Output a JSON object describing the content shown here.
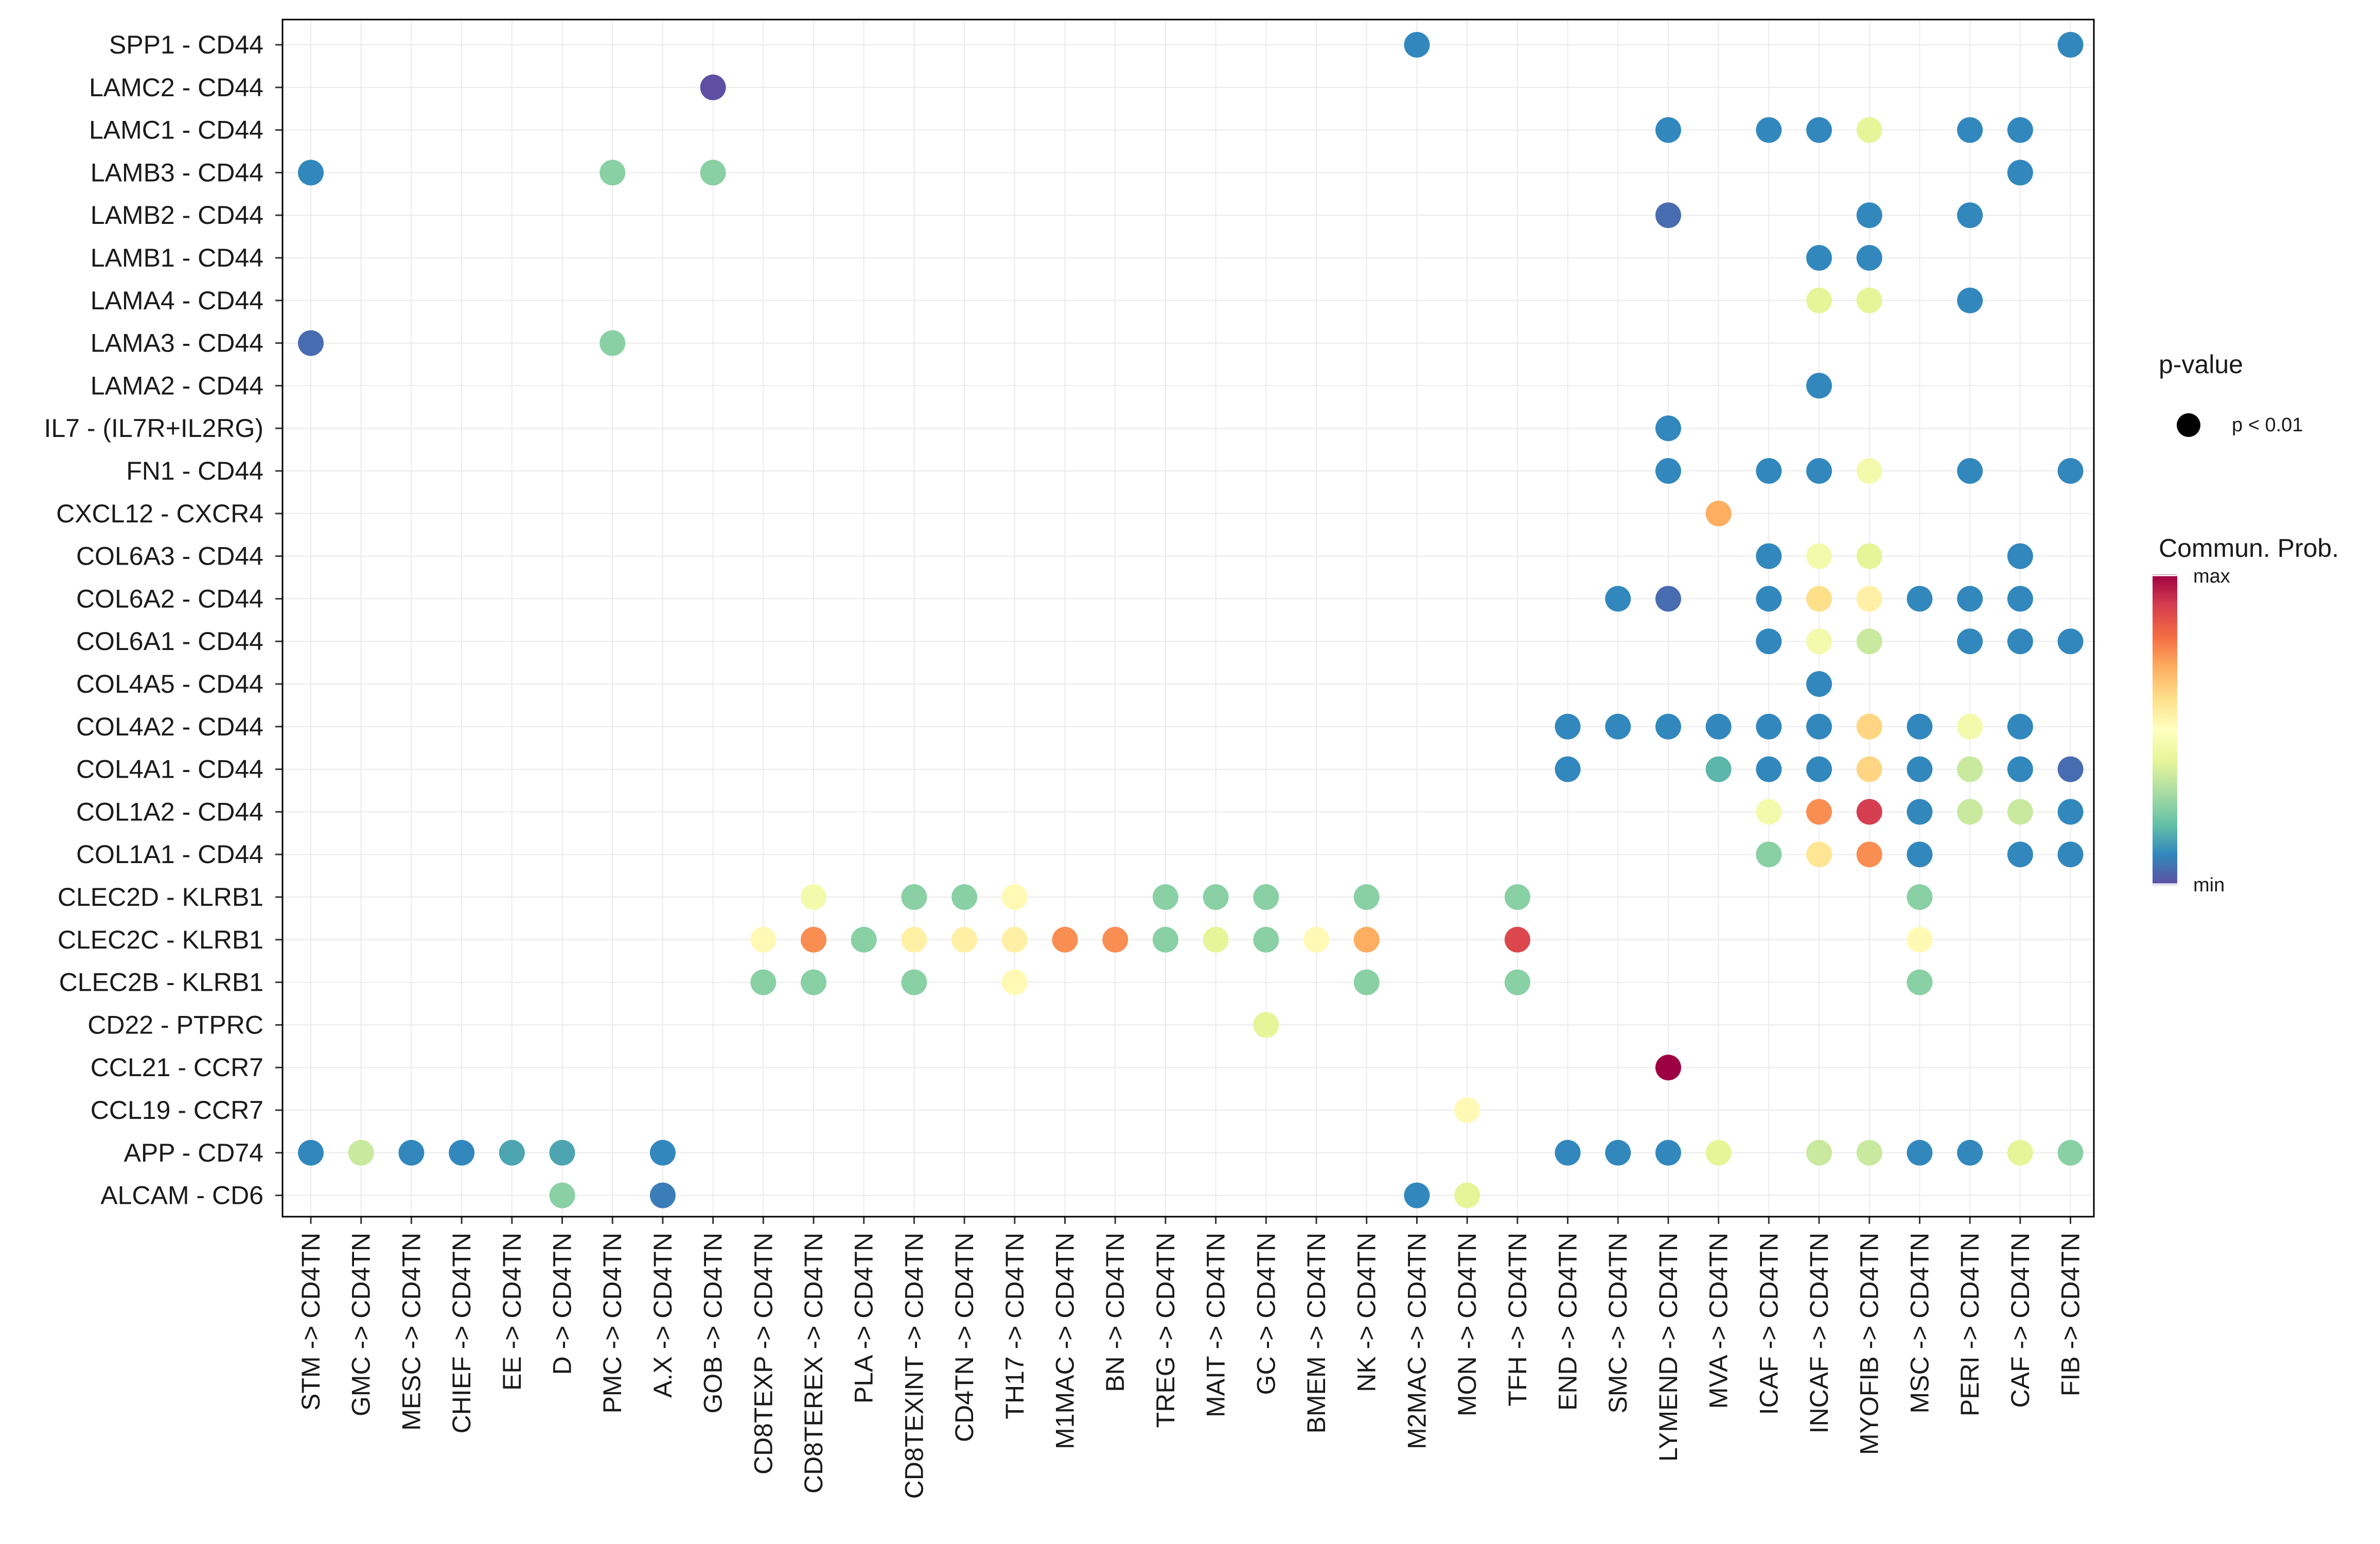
{
  "chart_data": {
    "type": "dot-heatmap",
    "title": "",
    "xlabel": "",
    "ylabel": "",
    "x_categories": [
      "STM -> CD4TN",
      "GMC -> CD4TN",
      "MESC -> CD4TN",
      "CHIEF -> CD4TN",
      "EE -> CD4TN",
      "D -> CD4TN",
      "PMC -> CD4TN",
      "A.X -> CD4TN",
      "GOB -> CD4TN",
      "CD8TEXP -> CD4TN",
      "CD8TEREX -> CD4TN",
      "PLA -> CD4TN",
      "CD8TEXINT -> CD4TN",
      "CD4TN -> CD4TN",
      "TH17 -> CD4TN",
      "M1MAC -> CD4TN",
      "BN -> CD4TN",
      "TREG -> CD4TN",
      "MAIT -> CD4TN",
      "GC -> CD4TN",
      "BMEM -> CD4TN",
      "NK -> CD4TN",
      "M2MAC -> CD4TN",
      "MON -> CD4TN",
      "TFH -> CD4TN",
      "END -> CD4TN",
      "SMC -> CD4TN",
      "LYMEND -> CD4TN",
      "MVA -> CD4TN",
      "ICAF -> CD4TN",
      "INCAF -> CD4TN",
      "MYOFIB -> CD4TN",
      "MSC -> CD4TN",
      "PERI -> CD4TN",
      "CAF -> CD4TN",
      "FIB -> CD4TN"
    ],
    "y_categories": [
      "SPP1 - CD44",
      "LAMC2 - CD44",
      "LAMC1 - CD44",
      "LAMB3 - CD44",
      "LAMB2 - CD44",
      "LAMB1 - CD44",
      "LAMA4 - CD44",
      "LAMA3 - CD44",
      "LAMA2 - CD44",
      "IL7 - (IL7R+IL2RG)",
      "FN1 - CD44",
      "CXCL12 - CXCR4",
      "COL6A3 - CD44",
      "COL6A2 - CD44",
      "COL6A1 - CD44",
      "COL4A5 - CD44",
      "COL4A2 - CD44",
      "COL4A1 - CD44",
      "COL1A2 - CD44",
      "COL1A1 - CD44",
      "CLEC2D - KLRB1",
      "CLEC2C - KLRB1",
      "CLEC2B - KLRB1",
      "CD22 - PTPRC",
      "CCL21 - CCR7",
      "CCL19 - CCR7",
      "APP - CD74",
      "ALCAM - CD6"
    ],
    "value_scale": "relative communication probability, 0 = min, 1 = max",
    "points": [
      {
        "x": "M2MAC -> CD4TN",
        "y": "SPP1 - CD44",
        "value": 0.1
      },
      {
        "x": "FIB -> CD4TN",
        "y": "SPP1 - CD44",
        "value": 0.1
      },
      {
        "x": "GOB -> CD4TN",
        "y": "LAMC2 - CD44",
        "value": 0.0
      },
      {
        "x": "LYMEND -> CD4TN",
        "y": "LAMC1 - CD44",
        "value": 0.1
      },
      {
        "x": "ICAF -> CD4TN",
        "y": "LAMC1 - CD44",
        "value": 0.1
      },
      {
        "x": "INCAF -> CD4TN",
        "y": "LAMC1 - CD44",
        "value": 0.1
      },
      {
        "x": "MYOFIB -> CD4TN",
        "y": "LAMC1 - CD44",
        "value": 0.4
      },
      {
        "x": "PERI -> CD4TN",
        "y": "LAMC1 - CD44",
        "value": 0.1
      },
      {
        "x": "CAF -> CD4TN",
        "y": "LAMC1 - CD44",
        "value": 0.1
      },
      {
        "x": "STM -> CD4TN",
        "y": "LAMB3 - CD44",
        "value": 0.1
      },
      {
        "x": "PMC -> CD4TN",
        "y": "LAMB3 - CD44",
        "value": 0.25
      },
      {
        "x": "GOB -> CD4TN",
        "y": "LAMB3 - CD44",
        "value": 0.25
      },
      {
        "x": "CAF -> CD4TN",
        "y": "LAMB3 - CD44",
        "value": 0.1
      },
      {
        "x": "LYMEND -> CD4TN",
        "y": "LAMB2 - CD44",
        "value": 0.05
      },
      {
        "x": "MYOFIB -> CD4TN",
        "y": "LAMB2 - CD44",
        "value": 0.1
      },
      {
        "x": "PERI -> CD4TN",
        "y": "LAMB2 - CD44",
        "value": 0.1
      },
      {
        "x": "INCAF -> CD4TN",
        "y": "LAMB1 - CD44",
        "value": 0.1
      },
      {
        "x": "MYOFIB -> CD4TN",
        "y": "LAMB1 - CD44",
        "value": 0.1
      },
      {
        "x": "INCAF -> CD4TN",
        "y": "LAMA4 - CD44",
        "value": 0.4
      },
      {
        "x": "MYOFIB -> CD4TN",
        "y": "LAMA4 - CD44",
        "value": 0.4
      },
      {
        "x": "PERI -> CD4TN",
        "y": "LAMA4 - CD44",
        "value": 0.1
      },
      {
        "x": "STM -> CD4TN",
        "y": "LAMA3 - CD44",
        "value": 0.05
      },
      {
        "x": "PMC -> CD4TN",
        "y": "LAMA3 - CD44",
        "value": 0.25
      },
      {
        "x": "INCAF -> CD4TN",
        "y": "LAMA2 - CD44",
        "value": 0.1
      },
      {
        "x": "LYMEND -> CD4TN",
        "y": "IL7 - (IL7R+IL2RG)",
        "value": 0.1
      },
      {
        "x": "LYMEND -> CD4TN",
        "y": "FN1 - CD44",
        "value": 0.1
      },
      {
        "x": "ICAF -> CD4TN",
        "y": "FN1 - CD44",
        "value": 0.1
      },
      {
        "x": "INCAF -> CD4TN",
        "y": "FN1 - CD44",
        "value": 0.1
      },
      {
        "x": "MYOFIB -> CD4TN",
        "y": "FN1 - CD44",
        "value": 0.45
      },
      {
        "x": "PERI -> CD4TN",
        "y": "FN1 - CD44",
        "value": 0.1
      },
      {
        "x": "FIB -> CD4TN",
        "y": "FN1 - CD44",
        "value": 0.1
      },
      {
        "x": "MVA -> CD4TN",
        "y": "CXCL12 - CXCR4",
        "value": 0.7
      },
      {
        "x": "ICAF -> CD4TN",
        "y": "COL6A3 - CD44",
        "value": 0.1
      },
      {
        "x": "INCAF -> CD4TN",
        "y": "COL6A3 - CD44",
        "value": 0.45
      },
      {
        "x": "MYOFIB -> CD4TN",
        "y": "COL6A3 - CD44",
        "value": 0.4
      },
      {
        "x": "CAF -> CD4TN",
        "y": "COL6A3 - CD44",
        "value": 0.1
      },
      {
        "x": "SMC -> CD4TN",
        "y": "COL6A2 - CD44",
        "value": 0.1
      },
      {
        "x": "LYMEND -> CD4TN",
        "y": "COL6A2 - CD44",
        "value": 0.05
      },
      {
        "x": "ICAF -> CD4TN",
        "y": "COL6A2 - CD44",
        "value": 0.1
      },
      {
        "x": "INCAF -> CD4TN",
        "y": "COL6A2 - CD44",
        "value": 0.6
      },
      {
        "x": "MYOFIB -> CD4TN",
        "y": "COL6A2 - CD44",
        "value": 0.55
      },
      {
        "x": "MSC -> CD4TN",
        "y": "COL6A2 - CD44",
        "value": 0.1
      },
      {
        "x": "PERI -> CD4TN",
        "y": "COL6A2 - CD44",
        "value": 0.1
      },
      {
        "x": "CAF -> CD4TN",
        "y": "COL6A2 - CD44",
        "value": 0.1
      },
      {
        "x": "ICAF -> CD4TN",
        "y": "COL6A1 - CD44",
        "value": 0.1
      },
      {
        "x": "INCAF -> CD4TN",
        "y": "COL6A1 - CD44",
        "value": 0.45
      },
      {
        "x": "MYOFIB -> CD4TN",
        "y": "COL6A1 - CD44",
        "value": 0.35
      },
      {
        "x": "PERI -> CD4TN",
        "y": "COL6A1 - CD44",
        "value": 0.1
      },
      {
        "x": "CAF -> CD4TN",
        "y": "COL6A1 - CD44",
        "value": 0.1
      },
      {
        "x": "FIB -> CD4TN",
        "y": "COL6A1 - CD44",
        "value": 0.1
      },
      {
        "x": "INCAF -> CD4TN",
        "y": "COL4A5 - CD44",
        "value": 0.1
      },
      {
        "x": "END -> CD4TN",
        "y": "COL4A2 - CD44",
        "value": 0.1
      },
      {
        "x": "SMC -> CD4TN",
        "y": "COL4A2 - CD44",
        "value": 0.1
      },
      {
        "x": "LYMEND -> CD4TN",
        "y": "COL4A2 - CD44",
        "value": 0.1
      },
      {
        "x": "MVA -> CD4TN",
        "y": "COL4A2 - CD44",
        "value": 0.1
      },
      {
        "x": "ICAF -> CD4TN",
        "y": "COL4A2 - CD44",
        "value": 0.1
      },
      {
        "x": "INCAF -> CD4TN",
        "y": "COL4A2 - CD44",
        "value": 0.1
      },
      {
        "x": "MYOFIB -> CD4TN",
        "y": "COL4A2 - CD44",
        "value": 0.62
      },
      {
        "x": "MSC -> CD4TN",
        "y": "COL4A2 - CD44",
        "value": 0.1
      },
      {
        "x": "PERI -> CD4TN",
        "y": "COL4A2 - CD44",
        "value": 0.45
      },
      {
        "x": "CAF -> CD4TN",
        "y": "COL4A2 - CD44",
        "value": 0.1
      },
      {
        "x": "END -> CD4TN",
        "y": "COL4A1 - CD44",
        "value": 0.1
      },
      {
        "x": "MVA -> CD4TN",
        "y": "COL4A1 - CD44",
        "value": 0.18
      },
      {
        "x": "ICAF -> CD4TN",
        "y": "COL4A1 - CD44",
        "value": 0.1
      },
      {
        "x": "INCAF -> CD4TN",
        "y": "COL4A1 - CD44",
        "value": 0.1
      },
      {
        "x": "MYOFIB -> CD4TN",
        "y": "COL4A1 - CD44",
        "value": 0.62
      },
      {
        "x": "MSC -> CD4TN",
        "y": "COL4A1 - CD44",
        "value": 0.1
      },
      {
        "x": "PERI -> CD4TN",
        "y": "COL4A1 - CD44",
        "value": 0.35
      },
      {
        "x": "CAF -> CD4TN",
        "y": "COL4A1 - CD44",
        "value": 0.1
      },
      {
        "x": "FIB -> CD4TN",
        "y": "COL4A1 - CD44",
        "value": 0.05
      },
      {
        "x": "ICAF -> CD4TN",
        "y": "COL1A2 - CD44",
        "value": 0.45
      },
      {
        "x": "INCAF -> CD4TN",
        "y": "COL1A2 - CD44",
        "value": 0.75
      },
      {
        "x": "MYOFIB -> CD4TN",
        "y": "COL1A2 - CD44",
        "value": 0.9
      },
      {
        "x": "MSC -> CD4TN",
        "y": "COL1A2 - CD44",
        "value": 0.1
      },
      {
        "x": "PERI -> CD4TN",
        "y": "COL1A2 - CD44",
        "value": 0.35
      },
      {
        "x": "CAF -> CD4TN",
        "y": "COL1A2 - CD44",
        "value": 0.35
      },
      {
        "x": "FIB -> CD4TN",
        "y": "COL1A2 - CD44",
        "value": 0.1
      },
      {
        "x": "ICAF -> CD4TN",
        "y": "COL1A1 - CD44",
        "value": 0.25
      },
      {
        "x": "INCAF -> CD4TN",
        "y": "COL1A1 - CD44",
        "value": 0.58
      },
      {
        "x": "MYOFIB -> CD4TN",
        "y": "COL1A1 - CD44",
        "value": 0.75
      },
      {
        "x": "MSC -> CD4TN",
        "y": "COL1A1 - CD44",
        "value": 0.1
      },
      {
        "x": "CAF -> CD4TN",
        "y": "COL1A1 - CD44",
        "value": 0.1
      },
      {
        "x": "FIB -> CD4TN",
        "y": "COL1A1 - CD44",
        "value": 0.1
      },
      {
        "x": "CD8TEREX -> CD4TN",
        "y": "CLEC2D - KLRB1",
        "value": 0.45
      },
      {
        "x": "CD8TEXINT -> CD4TN",
        "y": "CLEC2D - KLRB1",
        "value": 0.25
      },
      {
        "x": "CD4TN -> CD4TN",
        "y": "CLEC2D - KLRB1",
        "value": 0.25
      },
      {
        "x": "TH17 -> CD4TN",
        "y": "CLEC2D - KLRB1",
        "value": 0.52
      },
      {
        "x": "TREG -> CD4TN",
        "y": "CLEC2D - KLRB1",
        "value": 0.25
      },
      {
        "x": "MAIT -> CD4TN",
        "y": "CLEC2D - KLRB1",
        "value": 0.25
      },
      {
        "x": "GC -> CD4TN",
        "y": "CLEC2D - KLRB1",
        "value": 0.25
      },
      {
        "x": "NK -> CD4TN",
        "y": "CLEC2D - KLRB1",
        "value": 0.25
      },
      {
        "x": "TFH -> CD4TN",
        "y": "CLEC2D - KLRB1",
        "value": 0.25
      },
      {
        "x": "MSC -> CD4TN",
        "y": "CLEC2D - KLRB1",
        "value": 0.25
      },
      {
        "x": "CD8TEXP -> CD4TN",
        "y": "CLEC2C - KLRB1",
        "value": 0.52
      },
      {
        "x": "CD8TEREX -> CD4TN",
        "y": "CLEC2C - KLRB1",
        "value": 0.75
      },
      {
        "x": "PLA -> CD4TN",
        "y": "CLEC2C - KLRB1",
        "value": 0.25
      },
      {
        "x": "CD8TEXINT -> CD4TN",
        "y": "CLEC2C - KLRB1",
        "value": 0.55
      },
      {
        "x": "CD4TN -> CD4TN",
        "y": "CLEC2C - KLRB1",
        "value": 0.55
      },
      {
        "x": "TH17 -> CD4TN",
        "y": "CLEC2C - KLRB1",
        "value": 0.55
      },
      {
        "x": "M1MAC -> CD4TN",
        "y": "CLEC2C - KLRB1",
        "value": 0.75
      },
      {
        "x": "BN -> CD4TN",
        "y": "CLEC2C - KLRB1",
        "value": 0.75
      },
      {
        "x": "TREG -> CD4TN",
        "y": "CLEC2C - KLRB1",
        "value": 0.25
      },
      {
        "x": "MAIT -> CD4TN",
        "y": "CLEC2C - KLRB1",
        "value": 0.4
      },
      {
        "x": "GC -> CD4TN",
        "y": "CLEC2C - KLRB1",
        "value": 0.25
      },
      {
        "x": "BMEM -> CD4TN",
        "y": "CLEC2C - KLRB1",
        "value": 0.52
      },
      {
        "x": "NK -> CD4TN",
        "y": "CLEC2C - KLRB1",
        "value": 0.7
      },
      {
        "x": "TFH -> CD4TN",
        "y": "CLEC2C - KLRB1",
        "value": 0.88
      },
      {
        "x": "MSC -> CD4TN",
        "y": "CLEC2C - KLRB1",
        "value": 0.52
      },
      {
        "x": "CD8TEXP -> CD4TN",
        "y": "CLEC2B - KLRB1",
        "value": 0.25
      },
      {
        "x": "CD8TEREX -> CD4TN",
        "y": "CLEC2B - KLRB1",
        "value": 0.25
      },
      {
        "x": "CD8TEXINT -> CD4TN",
        "y": "CLEC2B - KLRB1",
        "value": 0.25
      },
      {
        "x": "TH17 -> CD4TN",
        "y": "CLEC2B - KLRB1",
        "value": 0.52
      },
      {
        "x": "NK -> CD4TN",
        "y": "CLEC2B - KLRB1",
        "value": 0.25
      },
      {
        "x": "TFH -> CD4TN",
        "y": "CLEC2B - KLRB1",
        "value": 0.25
      },
      {
        "x": "MSC -> CD4TN",
        "y": "CLEC2B - KLRB1",
        "value": 0.25
      },
      {
        "x": "GC -> CD4TN",
        "y": "CD22 - PTPRC",
        "value": 0.4
      },
      {
        "x": "LYMEND -> CD4TN",
        "y": "CCL21 - CCR7",
        "value": 1.0
      },
      {
        "x": "MON -> CD4TN",
        "y": "CCL19 - CCR7",
        "value": 0.52
      },
      {
        "x": "STM -> CD4TN",
        "y": "APP - CD74",
        "value": 0.1
      },
      {
        "x": "GMC -> CD4TN",
        "y": "APP - CD74",
        "value": 0.35
      },
      {
        "x": "MESC -> CD4TN",
        "y": "APP - CD74",
        "value": 0.1
      },
      {
        "x": "CHIEF -> CD4TN",
        "y": "APP - CD74",
        "value": 0.1
      },
      {
        "x": "EE -> CD4TN",
        "y": "APP - CD74",
        "value": 0.15
      },
      {
        "x": "D -> CD4TN",
        "y": "APP - CD74",
        "value": 0.15
      },
      {
        "x": "A.X -> CD4TN",
        "y": "APP - CD74",
        "value": 0.1
      },
      {
        "x": "END -> CD4TN",
        "y": "APP - CD74",
        "value": 0.1
      },
      {
        "x": "SMC -> CD4TN",
        "y": "APP - CD74",
        "value": 0.1
      },
      {
        "x": "LYMEND -> CD4TN",
        "y": "APP - CD74",
        "value": 0.1
      },
      {
        "x": "MVA -> CD4TN",
        "y": "APP - CD74",
        "value": 0.4
      },
      {
        "x": "INCAF -> CD4TN",
        "y": "APP - CD74",
        "value": 0.35
      },
      {
        "x": "MYOFIB -> CD4TN",
        "y": "APP - CD74",
        "value": 0.35
      },
      {
        "x": "MSC -> CD4TN",
        "y": "APP - CD74",
        "value": 0.1
      },
      {
        "x": "PERI -> CD4TN",
        "y": "APP - CD74",
        "value": 0.1
      },
      {
        "x": "CAF -> CD4TN",
        "y": "APP - CD74",
        "value": 0.4
      },
      {
        "x": "FIB -> CD4TN",
        "y": "APP - CD74",
        "value": 0.25
      },
      {
        "x": "D -> CD4TN",
        "y": "ALCAM - CD6",
        "value": 0.25
      },
      {
        "x": "A.X -> CD4TN",
        "y": "ALCAM - CD6",
        "value": 0.08
      },
      {
        "x": "M2MAC -> CD4TN",
        "y": "ALCAM - CD6",
        "value": 0.1
      },
      {
        "x": "MON -> CD4TN",
        "y": "ALCAM - CD6",
        "value": 0.4
      }
    ],
    "legend": {
      "size_title": "p-value",
      "size_label": "p < 0.01",
      "color_title": "Commun. Prob.",
      "color_max_label": "max",
      "color_min_label": "min",
      "palette_high_to_low": [
        "#9E0142",
        "#D53E4F",
        "#F46D43",
        "#FDAE61",
        "#FEE08B",
        "#FFFFBF",
        "#E6F598",
        "#ABDDA4",
        "#66C2A5",
        "#3288BD",
        "#5E4FA2"
      ]
    },
    "grid": true,
    "legend_position": "right"
  },
  "colors": {
    "panel_border": "#000000",
    "grid": "#ebebeb",
    "text": "#1a1a1a"
  }
}
